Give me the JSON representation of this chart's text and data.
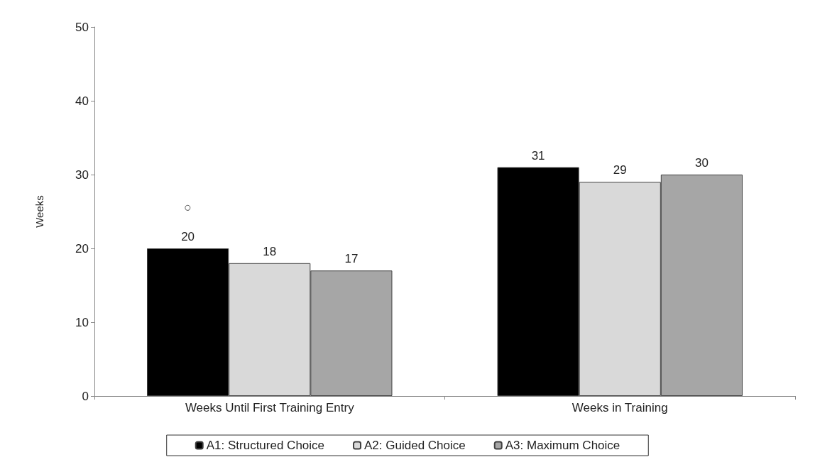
{
  "chart_data": {
    "type": "bar",
    "ylabel": "Weeks",
    "categories": [
      "Weeks Until First Training Entry",
      "Weeks in Training"
    ],
    "series": [
      {
        "name": "A1: Structured Choice",
        "color": "#000000",
        "values": [
          20,
          31
        ]
      },
      {
        "name": "A2: Guided Choice",
        "color": "#d9d9d9",
        "values": [
          18,
          29
        ]
      },
      {
        "name": "A3: Maximum Choice",
        "color": "#a6a6a6",
        "values": [
          17,
          30
        ]
      }
    ],
    "ylim": [
      0,
      50
    ],
    "yticks": [
      0,
      10,
      20,
      30,
      40,
      50
    ],
    "grid": false,
    "legend": "bottom",
    "data_labels": true,
    "annotations": [
      "○"
    ]
  }
}
